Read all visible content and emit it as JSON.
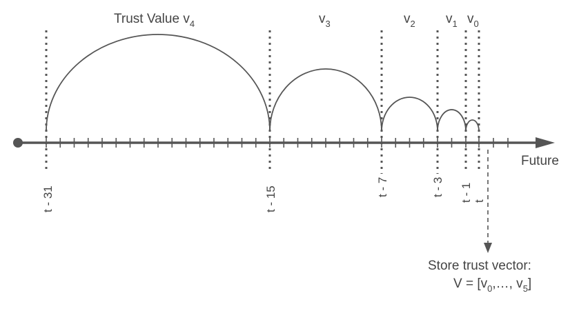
{
  "diagram": {
    "interval_labels": [
      {
        "text": "Trust Value v",
        "sub": "4"
      },
      {
        "text": "v",
        "sub": "3"
      },
      {
        "text": "v",
        "sub": "2"
      },
      {
        "text": "v",
        "sub": "1"
      },
      {
        "text": "v",
        "sub": "0"
      }
    ],
    "time_markers": [
      {
        "label": "t - 31",
        "offset": -31
      },
      {
        "label": "t - 15",
        "offset": -15
      },
      {
        "label": "t - 7",
        "offset": -7
      },
      {
        "label": "t - 3",
        "offset": -3
      },
      {
        "label": "t - 1",
        "offset": -1
      },
      {
        "label": "t",
        "offset": 0
      }
    ],
    "axis_label": "Future",
    "store_label": {
      "line1": "Store trust vector:",
      "line2_prefix": "V = [v",
      "sub_start": "0",
      "line2_mid": ",…, v",
      "sub_end": "5",
      "line2_suffix": "]"
    },
    "colors": {
      "line": "#555555",
      "text": "#444444"
    }
  }
}
